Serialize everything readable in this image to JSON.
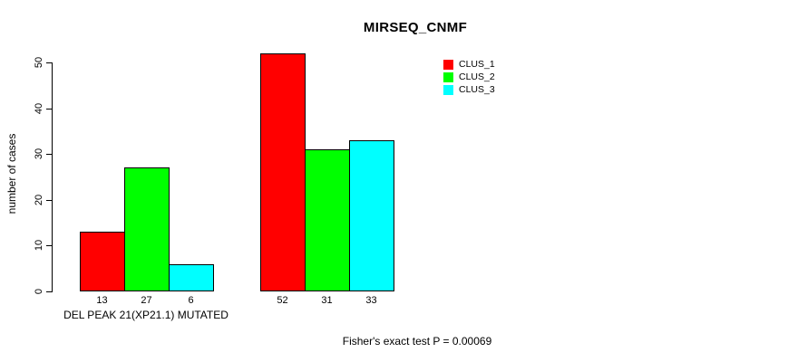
{
  "chart_data": {
    "type": "bar",
    "title": "MIRSEQ_CNMF",
    "ylabel": "number of cases",
    "yticks": [
      0,
      10,
      20,
      30,
      40,
      50
    ],
    "ylim": [
      0,
      52
    ],
    "grid": false,
    "legend_position": "top-right",
    "groups": [
      {
        "label": "DEL PEAK 21(XP21.1) MUTATED",
        "values": [
          13,
          27,
          6
        ]
      },
      {
        "label": "",
        "values": [
          52,
          31,
          33
        ]
      }
    ],
    "series": [
      {
        "name": "CLUS_1",
        "color": "#ff0000"
      },
      {
        "name": "CLUS_2",
        "color": "#00ff00"
      },
      {
        "name": "CLUS_3",
        "color": "#00ffff"
      }
    ],
    "bar_border_color": "#000000",
    "footnote": "Fisher's exact test P = 0.00069"
  }
}
